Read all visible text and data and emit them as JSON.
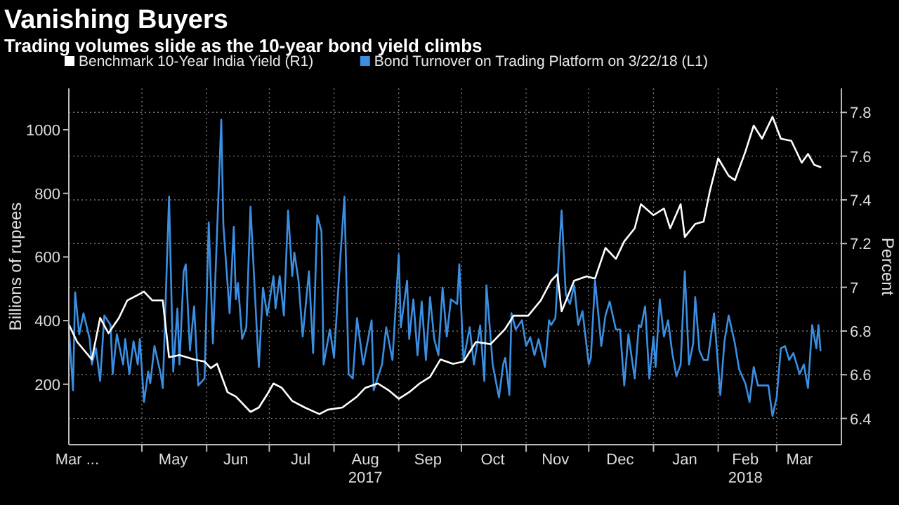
{
  "chart_data": {
    "type": "line",
    "title": "Vanishing Buyers",
    "subtitle": "Trading volumes slide as the 10-year bond yield climbs",
    "ylabel": "Billions of rupees",
    "y2label": "Percent",
    "legend": "top left",
    "grid": true,
    "xlim": [
      "2017-03-27",
      "2018-04-01"
    ],
    "xticks": [
      {
        "value": "2017-03-31",
        "label": "Mar ..."
      },
      {
        "value": "2017-05-01",
        "label": null
      },
      {
        "value": "2017-05-16",
        "label": "May"
      },
      {
        "value": "2017-06-01",
        "label": null
      },
      {
        "value": "2017-06-15",
        "label": "Jun"
      },
      {
        "value": "2017-07-01",
        "label": null
      },
      {
        "value": "2017-07-16",
        "label": "Jul"
      },
      {
        "value": "2017-08-01",
        "label": null
      },
      {
        "value": "2017-08-16",
        "label": "Aug\n2017"
      },
      {
        "value": "2017-09-01",
        "label": null
      },
      {
        "value": "2017-09-15",
        "label": "Sep"
      },
      {
        "value": "2017-10-01",
        "label": null
      },
      {
        "value": "2017-10-16",
        "label": "Oct"
      },
      {
        "value": "2017-11-01",
        "label": null
      },
      {
        "value": "2017-11-15",
        "label": "Nov"
      },
      {
        "value": "2017-12-01",
        "label": null
      },
      {
        "value": "2017-12-16",
        "label": "Dec"
      },
      {
        "value": "2018-01-01",
        "label": null
      },
      {
        "value": "2018-01-16",
        "label": "Jan"
      },
      {
        "value": "2018-02-01",
        "label": null
      },
      {
        "value": "2018-02-14",
        "label": "Feb\n2018"
      },
      {
        "value": "2018-03-01",
        "label": null
      },
      {
        "value": "2018-03-12",
        "label": "Mar"
      }
    ],
    "ylim": [
      10,
      1130
    ],
    "yticks": [
      200,
      400,
      600,
      800,
      1000
    ],
    "y2lim": [
      6.28,
      7.91
    ],
    "y2ticks": [
      6.4,
      6.6,
      6.8,
      7.0,
      7.2,
      7.4,
      7.6,
      7.8
    ],
    "series": [
      {
        "name": "Benchmark 10-Year India Yield (R1)",
        "color": "#ffffff",
        "axis": "y2",
        "x": [
          "2017-03-27",
          "2017-03-31",
          "2017-04-07",
          "2017-04-11",
          "2017-04-15",
          "2017-04-20",
          "2017-04-24",
          "2017-05-02",
          "2017-05-06",
          "2017-05-11",
          "2017-05-14",
          "2017-05-19",
          "2017-05-26",
          "2017-05-31",
          "2017-06-03",
          "2017-06-06",
          "2017-06-11",
          "2017-06-15",
          "2017-06-22",
          "2017-06-26",
          "2017-06-30",
          "2017-07-03",
          "2017-07-07",
          "2017-07-12",
          "2017-07-18",
          "2017-07-25",
          "2017-07-29",
          "2017-08-05",
          "2017-08-12",
          "2017-08-16",
          "2017-08-22",
          "2017-08-27",
          "2017-09-01",
          "2017-09-06",
          "2017-09-11",
          "2017-09-16",
          "2017-09-21",
          "2017-09-27",
          "2017-10-02",
          "2017-10-08",
          "2017-10-15",
          "2017-10-22",
          "2017-10-26",
          "2017-11-02",
          "2017-11-08",
          "2017-11-13",
          "2017-11-16",
          "2017-11-18",
          "2017-11-24",
          "2017-11-30",
          "2017-12-04",
          "2017-12-09",
          "2017-12-14",
          "2017-12-18",
          "2017-12-23",
          "2017-12-26",
          "2018-01-01",
          "2018-01-06",
          "2018-01-09",
          "2018-01-14",
          "2018-01-16",
          "2018-01-21",
          "2018-01-25",
          "2018-01-28",
          "2018-02-01",
          "2018-02-06",
          "2018-02-09",
          "2018-02-14",
          "2018-02-18",
          "2018-02-22",
          "2018-02-27",
          "2018-03-03",
          "2018-03-08",
          "2018-03-13",
          "2018-03-16",
          "2018-03-19",
          "2018-03-22"
        ],
        "values": [
          6.83,
          6.75,
          6.67,
          6.86,
          6.79,
          6.86,
          6.94,
          6.98,
          6.94,
          6.94,
          6.68,
          6.69,
          6.67,
          6.66,
          6.63,
          6.65,
          6.52,
          6.5,
          6.43,
          6.45,
          6.51,
          6.56,
          6.54,
          6.48,
          6.45,
          6.42,
          6.44,
          6.45,
          6.5,
          6.54,
          6.56,
          6.53,
          6.49,
          6.52,
          6.56,
          6.59,
          6.67,
          6.65,
          6.66,
          6.75,
          6.74,
          6.81,
          6.87,
          6.87,
          6.94,
          7.03,
          7.06,
          6.89,
          7.03,
          7.05,
          7.04,
          7.18,
          7.13,
          7.21,
          7.27,
          7.38,
          7.33,
          7.36,
          7.27,
          7.38,
          7.23,
          7.29,
          7.3,
          7.44,
          7.59,
          7.51,
          7.49,
          7.62,
          7.74,
          7.68,
          7.78,
          7.68,
          7.67,
          7.57,
          7.61,
          7.56,
          7.55
        ]
      },
      {
        "name": "Bond Turnover on Trading Platform on 3/22/18 (L1)",
        "color": "#3b8ee0",
        "x": [
          "2017-03-27",
          "2017-03-29",
          "2017-03-30",
          "2017-04-01",
          "2017-04-03",
          "2017-04-06",
          "2017-04-07",
          "2017-04-09",
          "2017-04-11",
          "2017-04-13",
          "2017-04-16",
          "2017-04-17",
          "2017-04-19",
          "2017-04-22",
          "2017-04-23",
          "2017-04-25",
          "2017-04-27",
          "2017-04-29",
          "2017-04-30",
          "2017-05-02",
          "2017-05-04",
          "2017-05-05",
          "2017-05-07",
          "2017-05-10",
          "2017-05-11",
          "2017-05-14",
          "2017-05-16",
          "2017-05-18",
          "2017-05-19",
          "2017-05-21",
          "2017-05-22",
          "2017-05-24",
          "2017-05-26",
          "2017-05-28",
          "2017-05-31",
          "2017-06-02",
          "2017-06-04",
          "2017-06-08",
          "2017-06-09",
          "2017-06-12",
          "2017-06-14",
          "2017-06-15",
          "2017-06-16",
          "2017-06-18",
          "2017-06-20",
          "2017-06-22",
          "2017-06-25",
          "2017-06-26",
          "2017-06-28",
          "2017-06-30",
          "2017-07-03",
          "2017-07-04",
          "2017-07-06",
          "2017-07-08",
          "2017-07-10",
          "2017-07-12",
          "2017-07-13",
          "2017-07-15",
          "2017-07-17",
          "2017-07-20",
          "2017-07-22",
          "2017-07-24",
          "2017-07-26",
          "2017-07-27",
          "2017-07-30",
          "2017-08-01",
          "2017-08-03",
          "2017-08-06",
          "2017-08-08",
          "2017-08-10",
          "2017-08-12",
          "2017-08-15",
          "2017-08-19",
          "2017-08-20",
          "2017-08-24",
          "2017-08-26",
          "2017-08-29",
          "2017-09-01",
          "2017-09-02",
          "2017-09-05",
          "2017-09-06",
          "2017-09-08",
          "2017-09-10",
          "2017-09-12",
          "2017-09-14",
          "2017-09-16",
          "2017-09-18",
          "2017-09-20",
          "2017-09-22",
          "2017-09-24",
          "2017-09-26",
          "2017-09-29",
          "2017-09-30",
          "2017-10-02",
          "2017-10-05",
          "2017-10-07",
          "2017-10-10",
          "2017-10-12",
          "2017-10-13",
          "2017-10-16",
          "2017-10-19",
          "2017-10-21",
          "2017-10-22",
          "2017-10-24",
          "2017-10-25",
          "2017-10-27",
          "2017-10-30",
          "2017-11-01",
          "2017-11-03",
          "2017-11-05",
          "2017-11-07",
          "2017-11-10",
          "2017-11-12",
          "2017-11-13",
          "2017-11-15",
          "2017-11-18",
          "2017-11-20",
          "2017-11-22",
          "2017-11-24",
          "2017-11-26",
          "2017-11-28",
          "2017-12-01",
          "2017-12-02",
          "2017-12-04",
          "2017-12-06",
          "2017-12-07",
          "2017-12-09",
          "2017-12-11",
          "2017-12-14",
          "2017-12-16",
          "2017-12-18",
          "2017-12-20",
          "2017-12-23",
          "2017-12-25",
          "2017-12-26",
          "2017-12-28",
          "2017-12-30",
          "2018-01-01",
          "2018-01-02",
          "2018-01-04",
          "2018-01-06",
          "2018-01-08",
          "2018-01-10",
          "2018-01-12",
          "2018-01-14",
          "2018-01-16",
          "2018-01-18",
          "2018-01-20",
          "2018-01-21",
          "2018-01-23",
          "2018-01-25",
          "2018-01-27",
          "2018-01-30",
          "2018-02-02",
          "2018-02-04",
          "2018-02-06",
          "2018-02-09",
          "2018-02-11",
          "2018-02-14",
          "2018-02-16",
          "2018-02-18",
          "2018-02-20",
          "2018-02-23",
          "2018-02-25",
          "2018-02-27",
          "2018-03-01",
          "2018-03-03",
          "2018-03-05",
          "2018-03-07",
          "2018-03-09",
          "2018-03-12",
          "2018-03-14",
          "2018-03-16",
          "2018-03-18",
          "2018-03-20",
          "2018-03-21",
          "2018-03-22"
        ],
        "values": [
          379,
          181,
          489,
          357,
          423,
          342,
          262,
          313,
          210,
          416,
          386,
          232,
          357,
          262,
          342,
          232,
          335,
          262,
          342,
          144,
          240,
          203,
          320,
          232,
          188,
          790,
          240,
          438,
          262,
          555,
          577,
          306,
          445,
          196,
          218,
          709,
          328,
          1032,
          702,
          423,
          695,
          467,
          518,
          342,
          379,
          758,
          372,
          254,
          504,
          416,
          540,
          438,
          540,
          416,
          746,
          540,
          614,
          526,
          350,
          555,
          298,
          731,
          680,
          262,
          372,
          284,
          497,
          790,
          232,
          218,
          408,
          262,
          401,
          181,
          262,
          379,
          276,
          607,
          379,
          526,
          342,
          467,
          291,
          460,
          276,
          474,
          342,
          291,
          504,
          350,
          467,
          452,
          577,
          276,
          379,
          262,
          385,
          210,
          511,
          262,
          159,
          262,
          283,
          166,
          423,
          372,
          401,
          320,
          348,
          291,
          342,
          254,
          401,
          386,
          408,
          746,
          482,
          452,
          511,
          386,
          430,
          262,
          283,
          526,
          393,
          320,
          416,
          460,
          372,
          372,
          196,
          357,
          218,
          386,
          379,
          445,
          218,
          350,
          254,
          467,
          350,
          401,
          298,
          225,
          262,
          555,
          262,
          328,
          474,
          306,
          276,
          276,
          423,
          166,
          335,
          416,
          328,
          247,
          203,
          144,
          254,
          196,
          196,
          196,
          100,
          159,
          313,
          320,
          276,
          298,
          232,
          262,
          188,
          386,
          313,
          386,
          306
        ]
      }
    ]
  }
}
